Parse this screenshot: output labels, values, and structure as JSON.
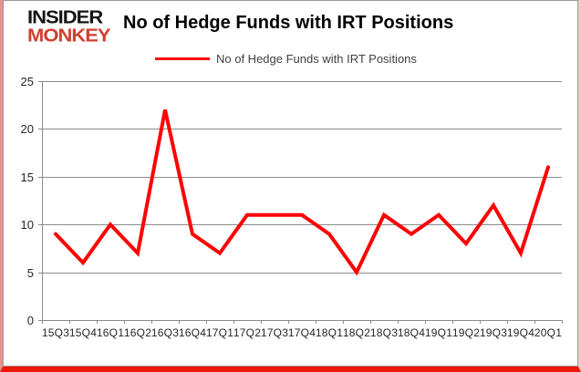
{
  "logo": {
    "line1": "INSIDER",
    "line2": "MONKEY"
  },
  "title": "No of Hedge Funds with IRT Positions",
  "legend": {
    "label": "No of Hedge Funds with IRT Positions"
  },
  "colors": {
    "series_red": "#fe0101",
    "logo_red": "#cf4030",
    "grid_gray": "#8c8c8c",
    "border_bottom_red": "#ec1808",
    "border_side_pink": "#e5928b"
  },
  "chart_data": {
    "type": "line",
    "title": "No of Hedge Funds with IRT Positions",
    "categories": [
      "15Q3",
      "15Q4",
      "16Q1",
      "16Q2",
      "16Q3",
      "16Q4",
      "17Q1",
      "17Q2",
      "17Q3",
      "17Q4",
      "18Q1",
      "18Q2",
      "18Q3",
      "18Q4",
      "19Q1",
      "19Q2",
      "19Q3",
      "19Q4",
      "20Q1"
    ],
    "series": [
      {
        "name": "No of Hedge Funds with IRT Positions",
        "color": "#fe0101",
        "values": [
          9,
          6,
          10,
          7,
          22,
          9,
          7,
          11,
          11,
          11,
          9,
          5,
          11,
          9,
          11,
          8,
          12,
          7,
          16
        ]
      }
    ],
    "xlabel": "",
    "ylabel": "",
    "ylim": [
      0,
      25
    ],
    "yticks": [
      0,
      5,
      10,
      15,
      20,
      25
    ],
    "grid": true,
    "legend_position": "top"
  }
}
